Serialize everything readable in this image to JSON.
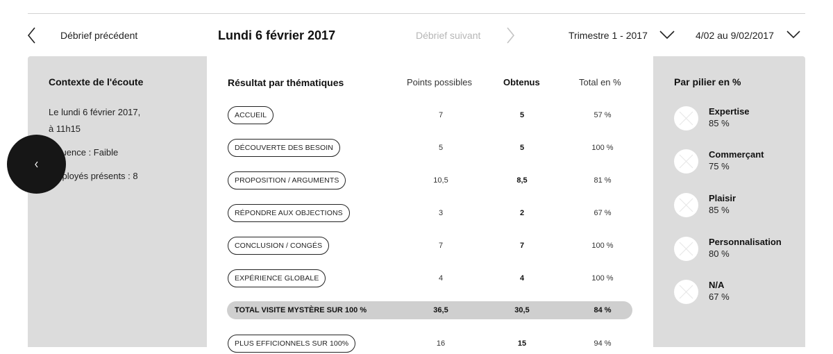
{
  "nav": {
    "prev_label": "Débrief précédent",
    "date": "Lundi 6 février 2017",
    "next_label": "Débrief suivant",
    "quarter": "Trimestre 1 - 2017",
    "week": "4/02 au 9/02/2017"
  },
  "context": {
    "title": "Contexte de l'écoute",
    "line1": "Le lundi 6 février 2017,",
    "line2": "à 11h15",
    "line3": "Affluence : Faible",
    "line4": "Employés présents : 8"
  },
  "results": {
    "title": "Résultat par thématiques",
    "col_possible": "Points possibles",
    "col_obtained": "Obtenus",
    "col_total": "Total en %",
    "rows": [
      {
        "label": "ACCUEIL",
        "possible": "7",
        "obtained": "5",
        "total": "57 %"
      },
      {
        "label": "DÉCOUVERTE DES BESOIN",
        "possible": "5",
        "obtained": "5",
        "total": "100 %"
      },
      {
        "label": "PROPOSITION / ARGUMENTS",
        "possible": "10,5",
        "obtained": "8,5",
        "total": "81 %"
      },
      {
        "label": "RÉPONDRE AUX OBJECTIONS",
        "possible": "3",
        "obtained": "2",
        "total": "67 %"
      },
      {
        "label": "CONCLUSION / CONGÉS",
        "possible": "7",
        "obtained": "7",
        "total": "100 %"
      },
      {
        "label": "EXPÉRIENCE GLOBALE",
        "possible": "4",
        "obtained": "4",
        "total": "100 %"
      }
    ],
    "total": {
      "label": "TOTAL VISITE MYSTÈRE SUR 100 %",
      "possible": "36,5",
      "obtained": "30,5",
      "total": "84 %"
    },
    "extra": {
      "label": "PLUS EFFICIONNELS SUR 100%",
      "possible": "16",
      "obtained": "15",
      "total": "94 %"
    }
  },
  "pillars": {
    "title": "Par pilier en %",
    "items": [
      {
        "name": "Expertise",
        "value": "85 %"
      },
      {
        "name": "Commerçant",
        "value": "75 %"
      },
      {
        "name": "Plaisir",
        "value": "85 %"
      },
      {
        "name": "Personnalisation",
        "value": "80 %"
      },
      {
        "name": "N/A",
        "value": "67 %"
      }
    ]
  },
  "icons": {
    "prev": "chevron-left-icon",
    "next": "chevron-right-icon",
    "dropdown": "chevron-down-icon",
    "fab": "chevron-left-icon",
    "pillar": "placeholder-circle-icon"
  },
  "colors": {
    "panel": "#dcdcdc",
    "fab": "#161616",
    "total_bar": "#cfcfcf",
    "disabled_text": "#b6b6b6"
  }
}
